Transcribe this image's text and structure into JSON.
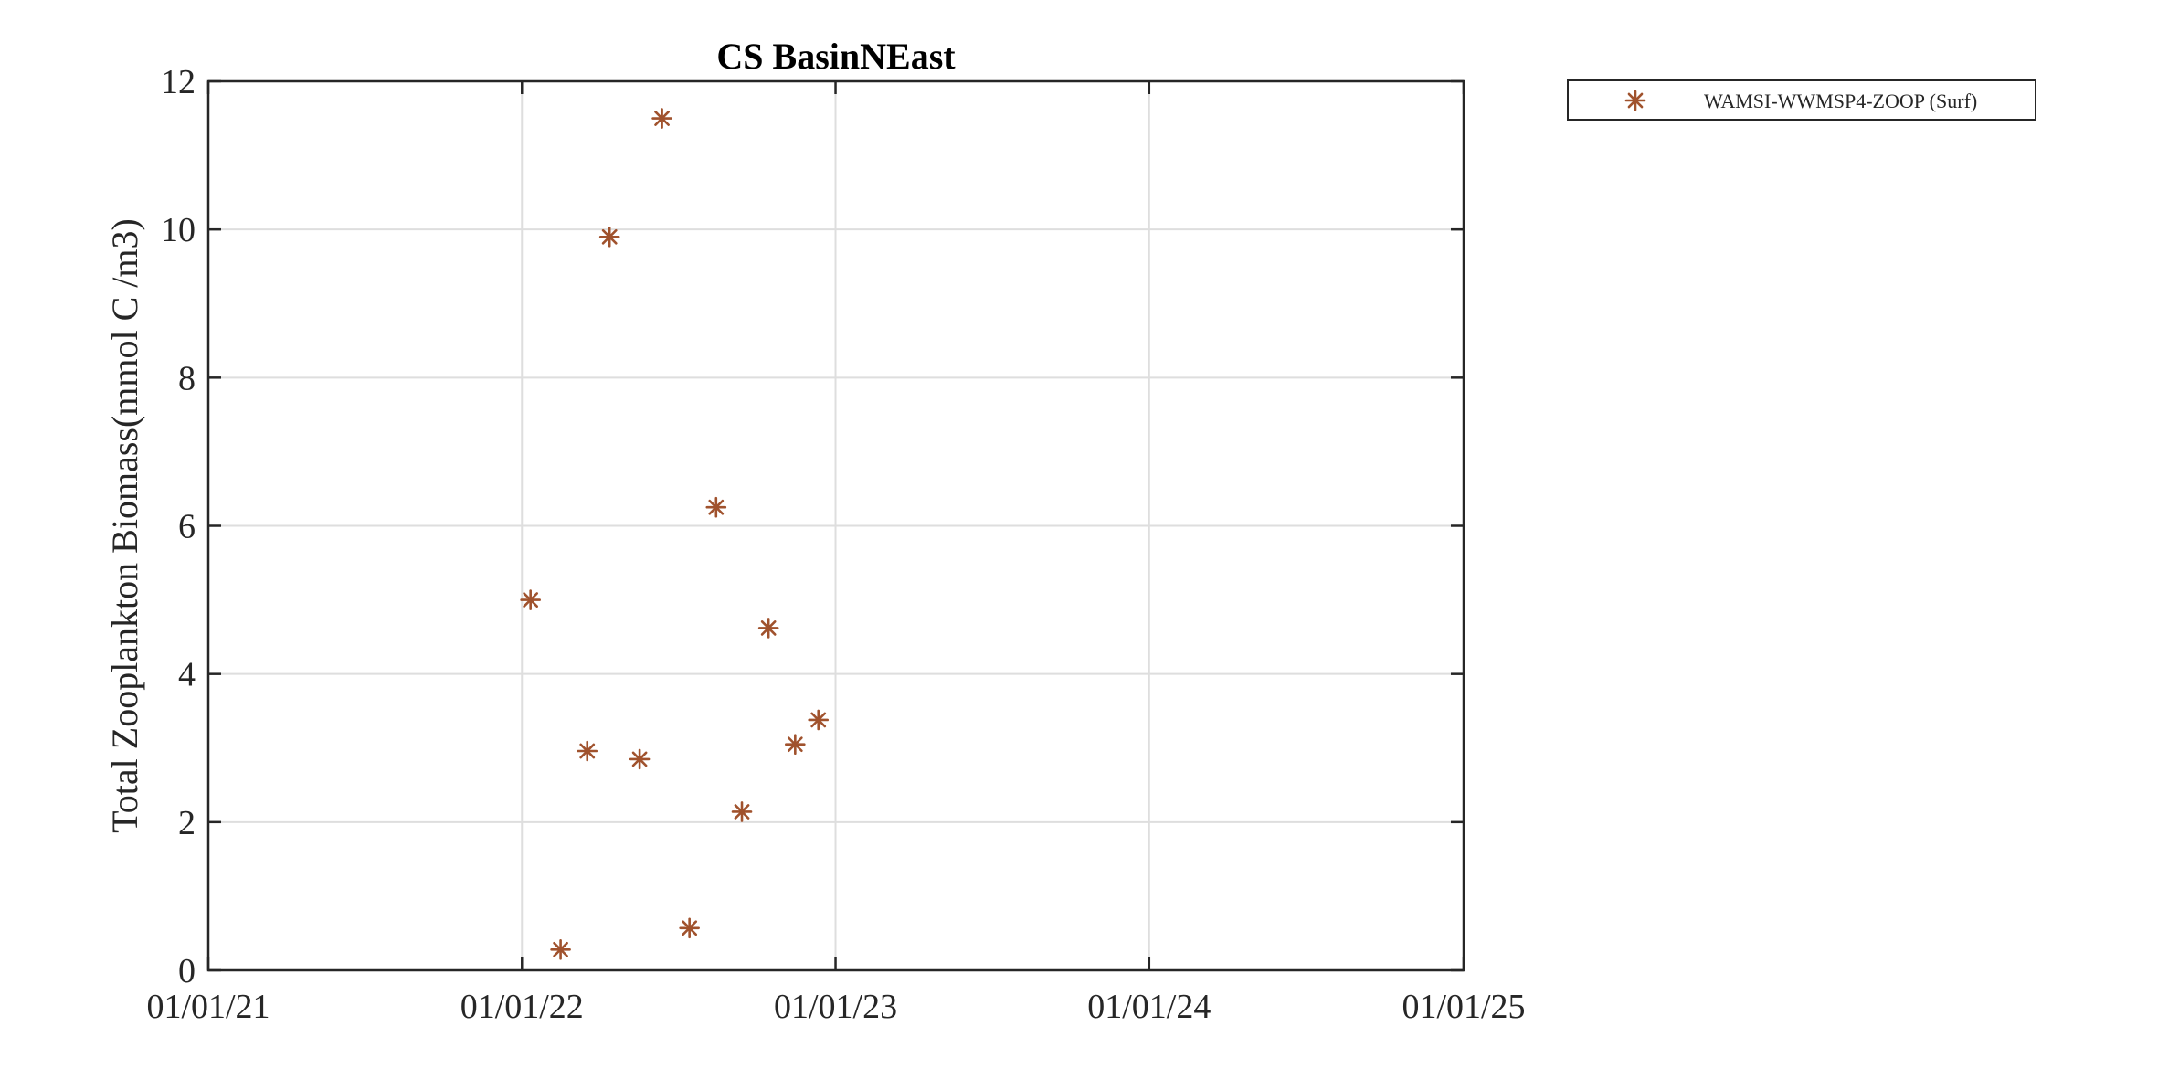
{
  "chart_data": {
    "type": "scatter",
    "title": "CS BasinNEast",
    "xlabel": "",
    "ylabel": "Total Zooplankton Biomass(mmol C /m3)",
    "x_ticks": [
      "01/01/21",
      "01/01/22",
      "01/01/23",
      "01/01/24",
      "01/01/25"
    ],
    "y_ticks": [
      "0",
      "2",
      "4",
      "6",
      "8",
      "10",
      "12"
    ],
    "xlim": [
      "2021-01-01",
      "2025-01-01"
    ],
    "ylim": [
      0,
      12
    ],
    "grid": true,
    "legend_placement": "outside-top-right",
    "series": [
      {
        "name": "WAMSI-WWMSP4-ZOOP (Surf)",
        "marker": "asterisk",
        "color": "#a0522d",
        "points": [
          {
            "x": "2022-01-11",
            "y": 5.0
          },
          {
            "x": "2022-02-15",
            "y": 0.28
          },
          {
            "x": "2022-03-18",
            "y": 2.96
          },
          {
            "x": "2022-04-13",
            "y": 9.9
          },
          {
            "x": "2022-05-18",
            "y": 2.85
          },
          {
            "x": "2022-06-13",
            "y": 11.5
          },
          {
            "x": "2022-07-15",
            "y": 0.57
          },
          {
            "x": "2022-08-15",
            "y": 6.25
          },
          {
            "x": "2022-09-14",
            "y": 2.14
          },
          {
            "x": "2022-10-15",
            "y": 4.62
          },
          {
            "x": "2022-11-15",
            "y": 3.05
          },
          {
            "x": "2022-12-12",
            "y": 3.38
          }
        ]
      }
    ]
  }
}
